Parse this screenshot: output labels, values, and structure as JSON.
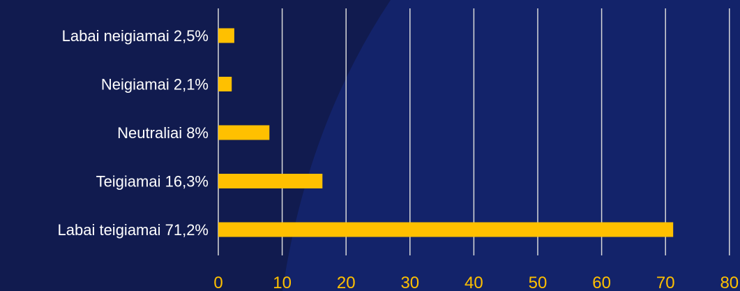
{
  "theme": {
    "background": "#111b4f",
    "background_overlay": "#13236a",
    "bar_color": "#ffc000",
    "gridline_color": "#d9d9d9",
    "label_color": "#ffffff",
    "tick_color": "#ffc000"
  },
  "chart_data": {
    "type": "bar",
    "orientation": "horizontal",
    "categories": [
      "Labai neigiamai 2,5%",
      "Neigiamai 2,1%",
      "Neutraliai 8%",
      "Teigiamai 16,3%",
      "Labai teigiamai 71,2%"
    ],
    "values": [
      2.5,
      2.1,
      8,
      16.3,
      71.2
    ],
    "xlim": [
      0,
      80
    ],
    "xticks": [
      "0",
      "10",
      "20",
      "30",
      "40",
      "50",
      "60",
      "70",
      "80"
    ],
    "grid": "vertical",
    "legend": "none"
  }
}
